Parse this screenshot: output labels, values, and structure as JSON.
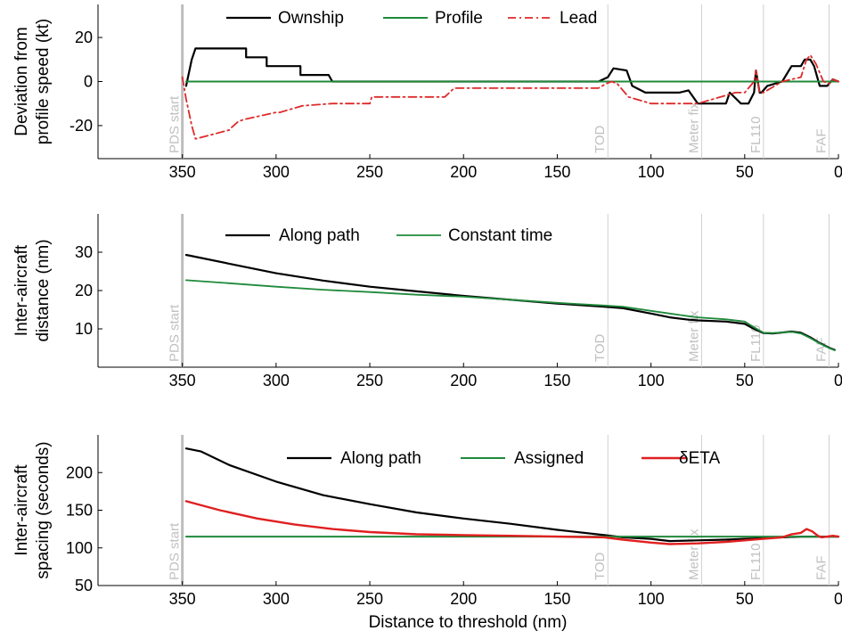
{
  "chart_data": [
    {
      "type": "line",
      "ylabel_lines": [
        "Deviation from",
        "profile speed (kt)"
      ],
      "xlim": [
        395,
        0
      ],
      "ylim": [
        -35,
        35
      ],
      "xticks": [
        350,
        300,
        250,
        200,
        150,
        100,
        50,
        0
      ],
      "yticks": [
        -20,
        0,
        20
      ],
      "markers": [
        {
          "x": 350,
          "label": "PDS start"
        },
        {
          "x": 123,
          "label": "TOD"
        },
        {
          "x": 73,
          "label": "Meter fix"
        },
        {
          "x": 40,
          "label": "FL110"
        },
        {
          "x": 5,
          "label": "FAF"
        }
      ],
      "legend": "top",
      "series": [
        {
          "name": "Ownship",
          "color": "#000000",
          "style": "solid",
          "width": 2.2,
          "x": [
            348,
            345,
            343,
            343,
            316,
            316,
            305,
            305,
            287,
            287,
            272,
            270,
            128,
            123,
            120,
            113,
            110,
            103,
            85,
            80,
            75,
            70,
            60,
            58,
            52,
            48,
            45,
            44,
            42,
            41,
            38,
            30,
            25,
            20,
            18,
            15,
            13,
            10,
            6,
            3,
            0
          ],
          "y": [
            -2,
            10,
            15,
            15,
            15,
            11,
            11,
            7,
            7,
            3,
            3,
            0,
            0,
            2,
            6,
            5,
            -2,
            -5,
            -5,
            -4,
            -10,
            -10,
            -10,
            -5,
            -10,
            -10,
            -5,
            5,
            -5,
            -5,
            -2,
            0,
            7,
            7,
            10,
            10,
            7,
            -2,
            -2,
            1,
            0
          ]
        },
        {
          "name": "Profile",
          "color": "#1f8a3b",
          "style": "solid",
          "width": 2,
          "x": [
            348,
            0
          ],
          "y": [
            0,
            0
          ]
        },
        {
          "name": "Lead",
          "color": "#dd2a2a",
          "style": "dashdot",
          "width": 1.8,
          "x": [
            350,
            348,
            345,
            343,
            325,
            324,
            320,
            316,
            300,
            298,
            286,
            270,
            250,
            249,
            210,
            205,
            128,
            124,
            121,
            118,
            112,
            100,
            80,
            75,
            55,
            50,
            45,
            44,
            42,
            40,
            30,
            20,
            17,
            15,
            12,
            8,
            5,
            3,
            0
          ],
          "y": [
            2,
            -8,
            -20,
            -26,
            -22,
            -21,
            -18,
            -17,
            -14,
            -14,
            -11,
            -10,
            -10,
            -7,
            -7,
            -3,
            -3,
            -1,
            0,
            -1,
            -7,
            -10,
            -10,
            -10,
            -5,
            -5,
            0,
            5,
            -5,
            -5,
            0,
            2,
            10,
            12,
            8,
            0,
            -1,
            1,
            0
          ]
        }
      ]
    },
    {
      "type": "line",
      "ylabel_lines": [
        "Inter-aircraft",
        "distance (nm)"
      ],
      "xlim": [
        395,
        0
      ],
      "ylim": [
        0,
        40
      ],
      "xticks": [
        350,
        300,
        250,
        200,
        150,
        100,
        50,
        0
      ],
      "yticks": [
        10,
        20,
        30
      ],
      "markers": [
        {
          "x": 350,
          "label": "PDS start"
        },
        {
          "x": 123,
          "label": "TOD"
        },
        {
          "x": 73,
          "label": "Meter fix"
        },
        {
          "x": 40,
          "label": "FL110"
        },
        {
          "x": 5,
          "label": "FAF"
        }
      ],
      "legend": "top",
      "series": [
        {
          "name": "Along path",
          "color": "#000000",
          "style": "solid",
          "width": 2.2,
          "x": [
            348,
            325,
            300,
            275,
            250,
            225,
            200,
            175,
            150,
            125,
            115,
            100,
            90,
            80,
            75,
            60,
            50,
            45,
            40,
            35,
            25,
            20,
            15,
            10,
            5,
            2
          ],
          "y": [
            29.3,
            27,
            24.5,
            22.6,
            21,
            19.8,
            18.6,
            17.6,
            16.6,
            15.8,
            15.4,
            14,
            13,
            12.4,
            12.2,
            11.9,
            11.3,
            10,
            8.9,
            8.8,
            9.3,
            9,
            7.8,
            6.3,
            5.1,
            4.5
          ]
        },
        {
          "name": "Constant time",
          "color": "#1f8a3b",
          "style": "solid",
          "width": 1.8,
          "x": [
            348,
            325,
            300,
            275,
            250,
            225,
            200,
            175,
            150,
            125,
            115,
            100,
            90,
            80,
            75,
            60,
            50,
            45,
            40,
            35,
            25,
            20,
            15,
            10,
            5,
            2
          ],
          "y": [
            22.7,
            21.9,
            21,
            20.2,
            19.6,
            18.9,
            18.4,
            17.6,
            16.8,
            16.1,
            15.8,
            14.7,
            14,
            13.3,
            13,
            12.5,
            11.9,
            10.4,
            9,
            8.9,
            9.2,
            8.8,
            7.6,
            6.2,
            5,
            4.4
          ]
        }
      ]
    },
    {
      "type": "line",
      "ylabel_lines": [
        "Inter-aircraft",
        "spacing (seconds)"
      ],
      "xlabel": "Distance to threshold (nm)",
      "xlim": [
        395,
        0
      ],
      "ylim": [
        50,
        250
      ],
      "xticks": [
        350,
        300,
        250,
        200,
        150,
        100,
        50,
        0
      ],
      "yticks": [
        50,
        100,
        150,
        200
      ],
      "markers": [
        {
          "x": 350,
          "label": "PDS start"
        },
        {
          "x": 123,
          "label": "TOD"
        },
        {
          "x": 73,
          "label": "Meter fix"
        },
        {
          "x": 40,
          "label": "FL110"
        },
        {
          "x": 5,
          "label": "FAF"
        }
      ],
      "legend": "top",
      "series": [
        {
          "name": "Along path",
          "color": "#000000",
          "style": "solid",
          "width": 2.2,
          "x": [
            348,
            340,
            325,
            300,
            275,
            250,
            225,
            200,
            175,
            150,
            125,
            115,
            100,
            90,
            75,
            60,
            50,
            40,
            30,
            20,
            10,
            0
          ],
          "y": [
            232,
            228,
            210,
            188,
            170,
            158,
            147,
            139,
            132,
            124,
            117,
            114,
            112,
            109,
            110,
            111,
            112,
            113,
            114,
            115,
            115,
            115
          ]
        },
        {
          "name": "Assigned",
          "color": "#1f8a3b",
          "style": "solid",
          "width": 2,
          "x": [
            348,
            0
          ],
          "y": [
            115,
            115
          ]
        },
        {
          "name": "δETA",
          "color": "#e02020",
          "style": "solid",
          "width": 2.4,
          "x": [
            348,
            330,
            310,
            290,
            270,
            250,
            225,
            200,
            175,
            150,
            125,
            115,
            100,
            90,
            75,
            60,
            50,
            40,
            30,
            25,
            20,
            17,
            14,
            11,
            9,
            6,
            3,
            0
          ],
          "y": [
            162,
            150,
            139,
            131,
            125,
            121,
            118,
            117,
            116,
            115,
            114,
            111,
            107,
            105,
            106,
            108,
            110,
            112,
            114,
            118,
            120,
            125,
            122,
            116,
            114,
            115,
            116,
            115
          ]
        }
      ]
    }
  ]
}
